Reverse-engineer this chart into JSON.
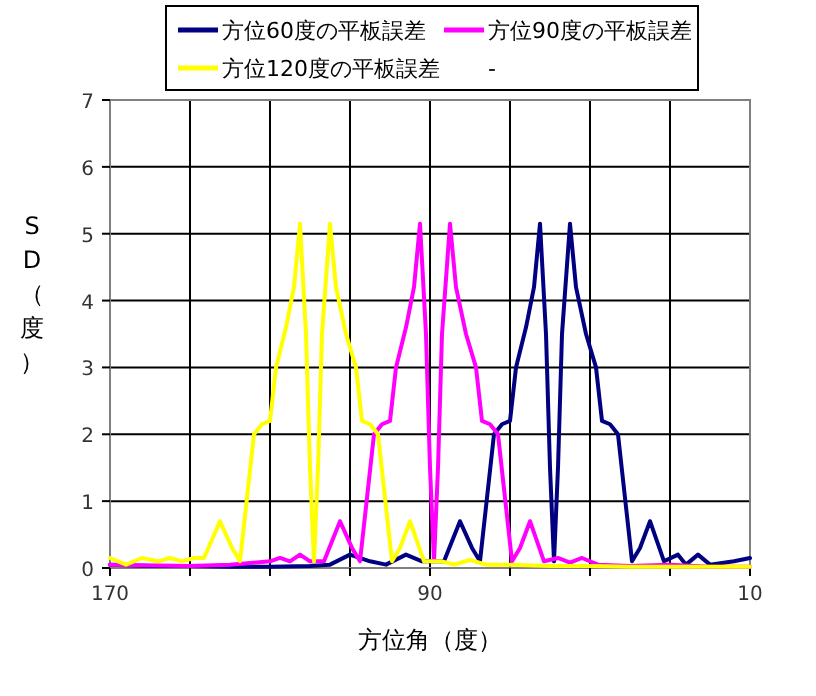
{
  "chart_data": {
    "type": "line",
    "xlabel": "方位角（度）",
    "ylabel": "SD（度）",
    "xlim": [
      170,
      10
    ],
    "xticks": [
      170,
      {
        "value": 150,
        "label": null
      },
      {
        "value": 130,
        "label": null
      },
      {
        "value": 110,
        "label": null
      },
      90,
      {
        "value": 70,
        "label": null
      },
      {
        "value": 50,
        "label": null
      },
      {
        "value": 30,
        "label": null
      },
      10
    ],
    "ylim": [
      0,
      7
    ],
    "yticks": [
      0,
      1,
      2,
      3,
      4,
      5,
      6,
      7
    ],
    "grid": true,
    "legend": "top",
    "marker": "none",
    "line_style": "solid",
    "series": [
      {
        "name": "方位60度の平板誤差",
        "color": "#000080",
        "x": [
          170,
          160,
          150,
          140,
          130,
          120,
          115,
          110,
          105,
          101,
          96,
          92,
          86.5,
          82.5,
          79.5,
          77.5,
          74,
          72,
          70,
          68.5,
          66,
          64,
          62.5,
          61,
          60,
          59,
          58,
          57,
          55,
          53.5,
          51,
          48.5,
          47,
          45,
          43,
          39.5,
          37.5,
          35,
          31.5,
          28,
          26,
          23,
          20,
          14,
          10
        ],
        "values": [
          0.05,
          0.03,
          0.03,
          0.02,
          0.02,
          0.03,
          0.05,
          0.2,
          0.1,
          0.05,
          0.2,
          0.1,
          0.1,
          0.7,
          0.3,
          0.1,
          2.0,
          2.15,
          2.2,
          3.0,
          3.6,
          4.2,
          5.15,
          3.5,
          1.5,
          0.1,
          1.5,
          3.5,
          5.15,
          4.2,
          3.5,
          3.0,
          2.2,
          2.15,
          2.0,
          0.1,
          0.3,
          0.7,
          0.1,
          0.2,
          0.05,
          0.2,
          0.05,
          0.1,
          0.15
        ]
      },
      {
        "name": "方位90度の平板誤差",
        "color": "#ff00ff",
        "x": [
          170,
          150,
          140,
          130,
          127.5,
          125,
          122.5,
          120,
          116.5,
          112.5,
          109.5,
          107.5,
          104,
          102,
          100,
          98.5,
          96,
          94,
          92.5,
          91,
          90,
          89,
          88,
          87,
          85,
          83.5,
          81,
          78.5,
          77,
          75,
          73,
          69.5,
          67.5,
          65,
          61.5,
          58,
          55,
          52,
          48,
          40,
          30,
          20,
          10
        ],
        "values": [
          0.05,
          0.03,
          0.05,
          0.1,
          0.15,
          0.1,
          0.2,
          0.1,
          0.1,
          0.7,
          0.3,
          0.1,
          2.0,
          2.15,
          2.2,
          3.0,
          3.6,
          4.2,
          5.15,
          3.5,
          1.5,
          0.1,
          1.5,
          3.5,
          5.15,
          4.2,
          3.5,
          3.0,
          2.2,
          2.15,
          2.0,
          0.1,
          0.3,
          0.7,
          0.1,
          0.15,
          0.08,
          0.15,
          0.05,
          0.03,
          0.05,
          0.02,
          0.02
        ]
      },
      {
        "name": "方位120度の平板誤差",
        "color": "#ffff00",
        "x": [
          170,
          166,
          162,
          158,
          155,
          152,
          149,
          146.5,
          142.5,
          139.5,
          137.5,
          134,
          132,
          130,
          128.5,
          126,
          124,
          122.5,
          121,
          120,
          119,
          118,
          117,
          115,
          113.5,
          111,
          108.5,
          107,
          105,
          103,
          99.5,
          97.5,
          95,
          91.5,
          87,
          84,
          80,
          76,
          70,
          60,
          50,
          40,
          30,
          10
        ],
        "values": [
          0.15,
          0.05,
          0.15,
          0.1,
          0.15,
          0.1,
          0.15,
          0.15,
          0.7,
          0.3,
          0.1,
          2.0,
          2.15,
          2.2,
          3.0,
          3.6,
          4.2,
          5.15,
          3.5,
          1.5,
          0.1,
          1.5,
          3.5,
          5.15,
          4.2,
          3.5,
          3.0,
          2.2,
          2.15,
          2.0,
          0.1,
          0.3,
          0.7,
          0.1,
          0.1,
          0.05,
          0.12,
          0.05,
          0.05,
          0.03,
          0.03,
          0.02,
          0.02,
          0.02
        ]
      },
      {
        "name": "-"
      }
    ]
  }
}
